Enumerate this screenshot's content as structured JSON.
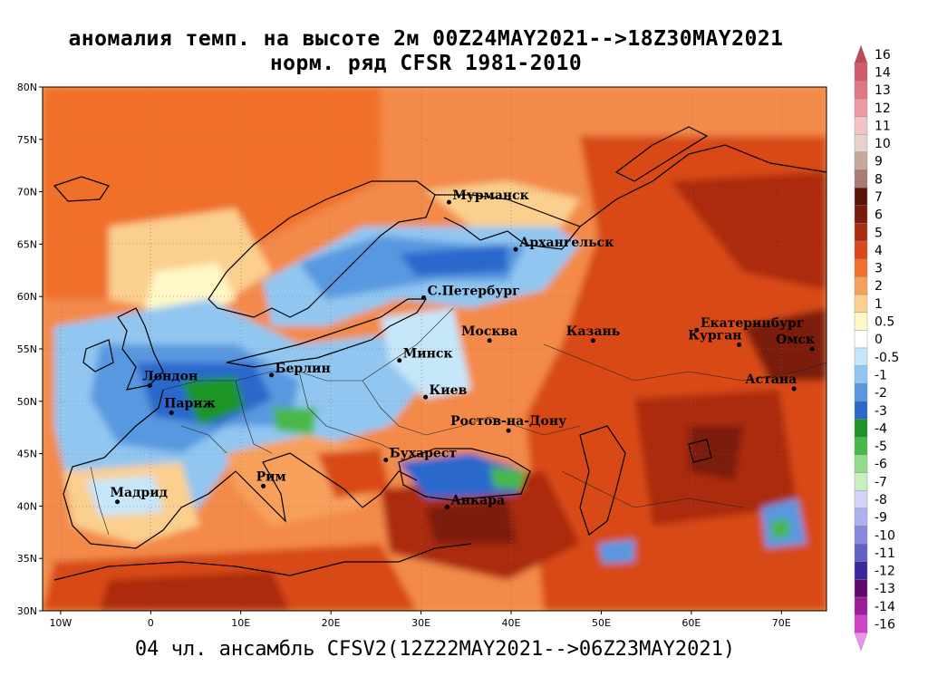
{
  "title_line1": "аномалия темп. на высоте 2м 00Z24MAY2021-->18Z30MAY2021",
  "title_line2": "норм. ряд CFSR 1981-2010",
  "bottom_caption": "04 чл. ансамбль CFSV2(12Z22MAY2021-->06Z23MAY2021)",
  "map": {
    "lon_range": [
      -12,
      75
    ],
    "lat_range": [
      30,
      80
    ],
    "lat_ticks": [
      "30N",
      "35N",
      "40N",
      "45N",
      "50N",
      "55N",
      "60N",
      "65N",
      "70N",
      "75N",
      "80N"
    ],
    "lon_ticks": [
      "10W",
      "0",
      "10E",
      "20E",
      "30E",
      "40E",
      "50E",
      "60E",
      "70E"
    ],
    "cities": [
      {
        "name": "Мурманск",
        "lon": 33.1,
        "lat": 69.0
      },
      {
        "name": "Архангельск",
        "lon": 40.5,
        "lat": 64.5
      },
      {
        "name": "С.Петербург",
        "lon": 30.3,
        "lat": 59.9
      },
      {
        "name": "Москва",
        "lon": 37.6,
        "lat": 55.8
      },
      {
        "name": "Казань",
        "lon": 49.1,
        "lat": 55.8
      },
      {
        "name": "Екатеринбург",
        "lon": 60.6,
        "lat": 56.8
      },
      {
        "name": "Курган",
        "lon": 65.3,
        "lat": 55.4
      },
      {
        "name": "Омск",
        "lon": 73.4,
        "lat": 55.0
      },
      {
        "name": "Астана",
        "lon": 71.4,
        "lat": 51.2
      },
      {
        "name": "Минск",
        "lon": 27.6,
        "lat": 53.9
      },
      {
        "name": "Берлин",
        "lon": 13.4,
        "lat": 52.5
      },
      {
        "name": "Лондон",
        "lon": -0.1,
        "lat": 51.5
      },
      {
        "name": "Париж",
        "lon": 2.3,
        "lat": 48.9
      },
      {
        "name": "Киев",
        "lon": 30.5,
        "lat": 50.4
      },
      {
        "name": "Ростов-на-Дону",
        "lon": 39.7,
        "lat": 47.2
      },
      {
        "name": "Бухарест",
        "lon": 26.1,
        "lat": 44.4
      },
      {
        "name": "Рим",
        "lon": 12.5,
        "lat": 41.9
      },
      {
        "name": "Мадрид",
        "lon": -3.7,
        "lat": 40.4
      },
      {
        "name": "Анкара",
        "lon": 32.9,
        "lat": 39.9
      }
    ]
  },
  "colorbar": {
    "labels": [
      "16",
      "14",
      "13",
      "12",
      "11",
      "10",
      "9",
      "8",
      "7",
      "6",
      "5",
      "4",
      "3",
      "2",
      "1",
      "0.5",
      "0",
      "-0.5",
      "-1",
      "-2",
      "-3",
      "-4",
      "-5",
      "-6",
      "-7",
      "-8",
      "-9",
      "-10",
      "-11",
      "-12",
      "-13",
      "-14",
      "-16"
    ],
    "colors": [
      "#c0485a",
      "#d05c6c",
      "#e07884",
      "#eb9aa2",
      "#f4c2c6",
      "#e6d2cc",
      "#c8a89c",
      "#a87c70",
      "#5c1408",
      "#7c1c0c",
      "#ac2c10",
      "#d84818",
      "#f0702c",
      "#f7a05c",
      "#fbcf8e",
      "#fff8c6",
      "#ffffff",
      "#c6e6fa",
      "#90c6f0",
      "#5898e0",
      "#2c68cc",
      "#1c9428",
      "#48b848",
      "#90dc88",
      "#c8f0c0",
      "#d4d4f6",
      "#b0b0ec",
      "#8888dc",
      "#6060c8",
      "#3828a0",
      "#600870",
      "#a01a9c",
      "#d040c8",
      "#f090ec"
    ]
  }
}
